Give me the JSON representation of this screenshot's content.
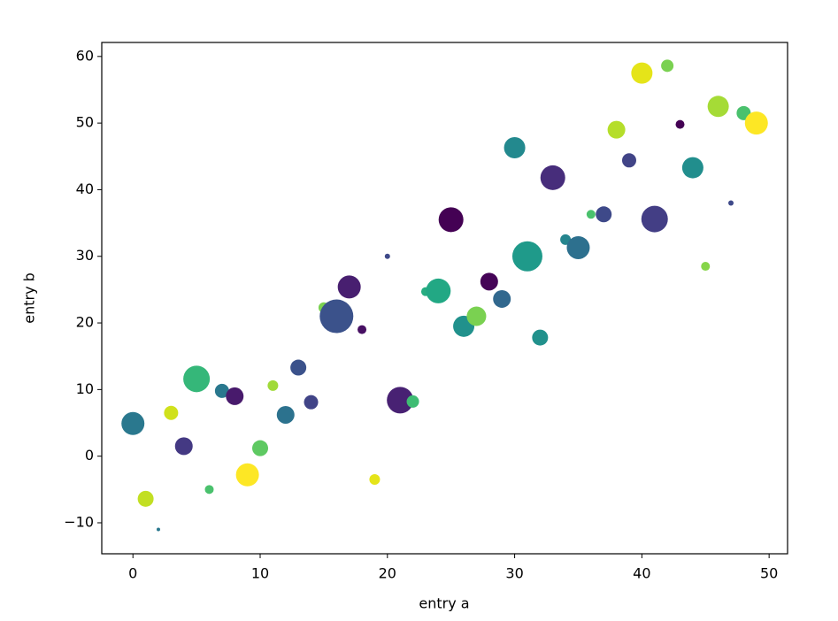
{
  "chart_data": {
    "type": "scatter",
    "xlabel": "entry a",
    "ylabel": "entry b",
    "x": [
      0,
      1,
      2,
      3,
      4,
      5,
      6,
      7,
      8,
      9,
      10,
      11,
      12,
      13,
      14,
      15,
      16,
      17,
      18,
      19,
      20,
      21,
      22,
      23,
      24,
      25,
      26,
      27,
      28,
      29,
      30,
      31,
      32,
      33,
      34,
      35,
      36,
      37,
      38,
      39,
      40,
      41,
      42,
      43,
      44,
      45,
      46,
      47,
      48,
      49
    ],
    "values": [
      4.9,
      -6.4,
      -11.0,
      6.5,
      1.5,
      11.6,
      -5.0,
      9.8,
      9.0,
      -2.8,
      1.2,
      10.6,
      6.2,
      13.3,
      8.1,
      22.3,
      21.0,
      25.4,
      19.0,
      -3.5,
      30.0,
      8.4,
      8.2,
      24.7,
      24.8,
      35.5,
      19.5,
      21.0,
      26.2,
      23.6,
      46.3,
      30.0,
      17.8,
      41.8,
      32.5,
      31.3,
      36.3,
      36.3,
      49.0,
      44.4,
      57.5,
      35.6,
      58.6,
      49.8,
      43.3,
      28.5,
      52.5,
      38.0,
      51.5,
      50.0
    ],
    "sizes": [
      13,
      9,
      2,
      8,
      10,
      15,
      5,
      8,
      10,
      13,
      9,
      6,
      10,
      9,
      8,
      6,
      19,
      13,
      5,
      6,
      3,
      15,
      7,
      5,
      14,
      14,
      12,
      11,
      10,
      10,
      12,
      17,
      9,
      14,
      6,
      13,
      5,
      9,
      10,
      8,
      12,
      15,
      7,
      5,
      12,
      5,
      12,
      3,
      8,
      13
    ],
    "colors": [
      "#2a788e",
      "#c2df23",
      "#2a788e",
      "#d0e11c",
      "#443983",
      "#35b779",
      "#4ac16d",
      "#2a788e",
      "#481a6c",
      "#fde725",
      "#5ec962",
      "#a0da39",
      "#2c728e",
      "#3b528b",
      "#414487",
      "#7ad151",
      "#3b528b",
      "#481f70",
      "#471063",
      "#e5e419",
      "#3e4989",
      "#482173",
      "#3fbc73",
      "#27ad81",
      "#22a884",
      "#440154",
      "#21918c",
      "#7ad151",
      "#450457",
      "#31688e",
      "#23898e",
      "#1f9a8a",
      "#21918c",
      "#472d7b",
      "#25858e",
      "#2d708e",
      "#4ac16d",
      "#3e4989",
      "#b5de2b",
      "#414487",
      "#e5e419",
      "#433e85",
      "#7ad151",
      "#440154",
      "#218e8d",
      "#86d549",
      "#a5db36",
      "#3e4989",
      "#4ac16d",
      "#fde725"
    ],
    "xlim": [
      -2.45,
      51.45
    ],
    "ylim": [
      -14.65,
      62.1
    ],
    "xticks": [
      0,
      10,
      20,
      30,
      40,
      50
    ],
    "yticks": [
      {
        "value": -10,
        "label": "−10"
      },
      0,
      10,
      20,
      30,
      40,
      50,
      60
    ]
  }
}
